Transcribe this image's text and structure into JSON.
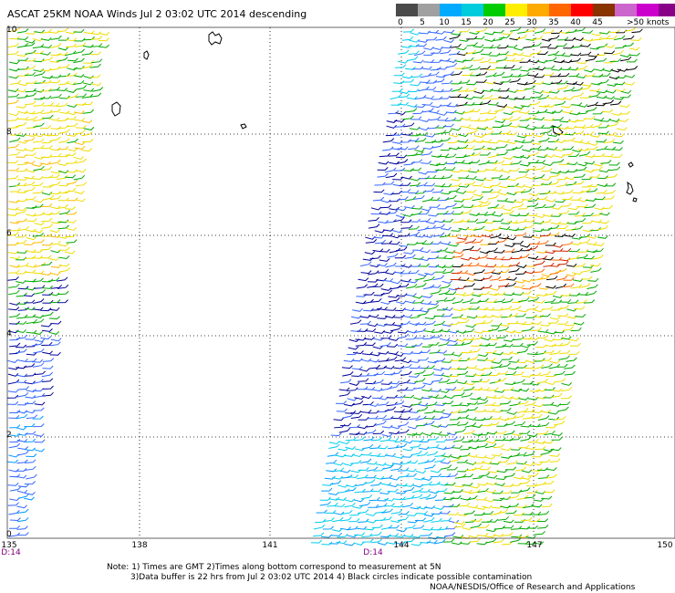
{
  "title": "ASCAT 25KM NOAA Winds  Jul  2 03:02 UTC 2014  descending",
  "legend": {
    "colors": [
      "#4a4a4a",
      "#a0a0a0",
      "#00aaff",
      "#00ccdd",
      "#00cc00",
      "#ffee00",
      "#ffaa00",
      "#ff6600",
      "#ff0000",
      "#883300",
      "#cc66cc",
      "#cc00cc",
      "#880088",
      "#440044"
    ],
    "ticks": [
      "0",
      "5",
      "10",
      "15",
      "20",
      "25",
      "30",
      "35",
      "40",
      "45",
      ">50 knots"
    ]
  },
  "axes": {
    "lat_labels": [
      "10",
      "8",
      "6",
      "4",
      "2",
      "0"
    ],
    "lon_labels": [
      "135",
      "138",
      "141",
      "144",
      "147",
      "150"
    ],
    "time_labels": [
      "D:14",
      "D:14"
    ]
  },
  "notes": {
    "line1": "Note: 1) Times are GMT 2)Times along bottom correspond to measurement at 5N",
    "line2": "3)Data buffer is 22 hrs from Jul  2 03:02 UTC 2014 4) Black circles indicate possible contamination",
    "line3": "NOAA/NESDIS/Office of Research and Applications"
  }
}
